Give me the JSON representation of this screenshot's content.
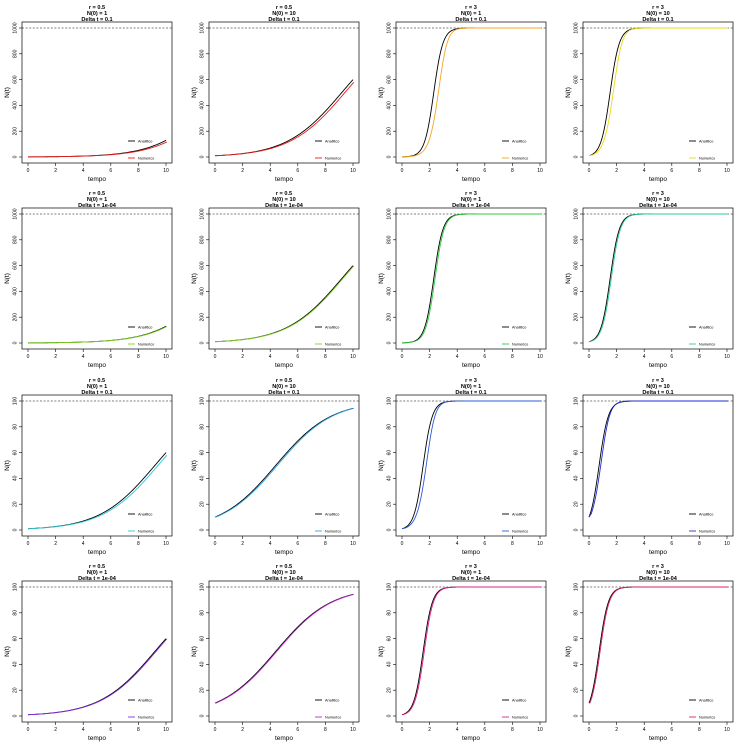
{
  "panel_common": {
    "xlabel": "tempo",
    "ylabel": "N(t)",
    "legend_analytic": "Analitico",
    "legend_numeric": "Numerico",
    "legend_position": "bottom-right",
    "xticks": [
      "0",
      "2",
      "4",
      "6",
      "8",
      "10"
    ],
    "yticks_K1000": [
      "0",
      "200",
      "400",
      "600",
      "800",
      "1000"
    ],
    "yticks_K100": [
      "0",
      "20",
      "40",
      "60",
      "80",
      "100"
    ]
  },
  "chart_data": [
    {
      "type": "line",
      "row": 0,
      "col": 0,
      "title": [
        "r = 0.5",
        "N(0) = 1",
        "Delta t = 0.1"
      ],
      "r": 0.5,
      "N0": 1,
      "K": 1000,
      "dt": 0.1,
      "xlim": [
        0,
        10
      ],
      "ylim": [
        0,
        1000
      ],
      "numeric_color": "#e8201c",
      "series": [
        {
          "name": "Analitico",
          "x": [
            0,
            2,
            4,
            6,
            8,
            10
          ],
          "y": [
            1,
            2.7,
            7.3,
            19.8,
            51.8,
            129.4
          ]
        },
        {
          "name": "Numerico"
        }
      ]
    },
    {
      "type": "line",
      "row": 0,
      "col": 1,
      "title": [
        "r = 0.5",
        "N(0) = 10",
        "Delta t = 0.1"
      ],
      "r": 0.5,
      "N0": 10,
      "K": 1000,
      "dt": 0.1,
      "xlim": [
        0,
        10
      ],
      "ylim": [
        0,
        1000
      ],
      "numeric_color": "#e8201c",
      "series": [
        {
          "name": "Analitico",
          "x": [
            0,
            2,
            4,
            6,
            8,
            10
          ],
          "y": [
            10,
            26.7,
            69.5,
            168.6,
            355.3,
            599.9
          ]
        },
        {
          "name": "Numerico"
        }
      ]
    },
    {
      "type": "line",
      "row": 0,
      "col": 2,
      "title": [
        "r = 3",
        "N(0) = 1",
        "Delta t = 0.1"
      ],
      "r": 3,
      "N0": 1,
      "K": 1000,
      "dt": 0.1,
      "xlim": [
        0,
        10
      ],
      "ylim": [
        0,
        1000
      ],
      "numeric_color": "#f5a623",
      "series": [
        {
          "name": "Analitico",
          "x": [
            0,
            1,
            2,
            3,
            4,
            6,
            10
          ],
          "y": [
            1,
            19.7,
            287.5,
            890.2,
            993.9,
            1000,
            1000
          ]
        },
        {
          "name": "Numerico"
        }
      ]
    },
    {
      "type": "line",
      "row": 0,
      "col": 3,
      "title": [
        "r = 3",
        "N(0) = 10",
        "Delta t = 0.1"
      ],
      "r": 3,
      "N0": 10,
      "K": 1000,
      "dt": 0.1,
      "xlim": [
        0,
        10
      ],
      "ylim": [
        0,
        1000
      ],
      "numeric_color": "#e6dc14",
      "series": [
        {
          "name": "Analitico",
          "x": [
            0,
            1,
            2,
            3,
            4,
            6,
            10
          ],
          "y": [
            10,
            168.6,
            802.9,
            987.9,
            999.4,
            1000,
            1000
          ]
        },
        {
          "name": "Numerico"
        }
      ]
    },
    {
      "type": "line",
      "row": 1,
      "col": 0,
      "title": [
        "r = 0.5",
        "N(0) = 1",
        "Delta t = 1e-04"
      ],
      "r": 0.5,
      "N0": 1,
      "K": 1000,
      "dt": 0.0001,
      "xlim": [
        0,
        10
      ],
      "ylim": [
        0,
        1000
      ],
      "numeric_color": "#7ed321",
      "series": [
        {
          "name": "Analitico",
          "x": [
            0,
            2,
            4,
            6,
            8,
            10
          ],
          "y": [
            1,
            2.7,
            7.3,
            19.8,
            51.8,
            129.4
          ]
        },
        {
          "name": "Numerico"
        }
      ]
    },
    {
      "type": "line",
      "row": 1,
      "col": 1,
      "title": [
        "r = 0.5",
        "N(0) = 10",
        "Delta t = 1e-04"
      ],
      "r": 0.5,
      "N0": 10,
      "K": 1000,
      "dt": 0.0001,
      "xlim": [
        0,
        10
      ],
      "ylim": [
        0,
        1000
      ],
      "numeric_color": "#7ed321",
      "series": [
        {
          "name": "Analitico",
          "x": [
            0,
            2,
            4,
            6,
            8,
            10
          ],
          "y": [
            10,
            26.7,
            69.5,
            168.6,
            355.3,
            599.9
          ]
        },
        {
          "name": "Numerico"
        }
      ]
    },
    {
      "type": "line",
      "row": 1,
      "col": 2,
      "title": [
        "r = 3",
        "N(0) = 1",
        "Delta t = 1e-04"
      ],
      "r": 3,
      "N0": 1,
      "K": 1000,
      "dt": 0.0001,
      "xlim": [
        0,
        10
      ],
      "ylim": [
        0,
        1000
      ],
      "numeric_color": "#2ecc40",
      "series": [
        {
          "name": "Analitico",
          "x": [
            0,
            1,
            2,
            3,
            4,
            6,
            10
          ],
          "y": [
            1,
            19.7,
            287.5,
            890.2,
            993.9,
            1000,
            1000
          ]
        },
        {
          "name": "Numerico"
        }
      ]
    },
    {
      "type": "line",
      "row": 1,
      "col": 3,
      "title": [
        "r = 3",
        "N(0) = 10",
        "Delta t = 1e-04"
      ],
      "r": 3,
      "N0": 10,
      "K": 1000,
      "dt": 0.0001,
      "xlim": [
        0,
        10
      ],
      "ylim": [
        0,
        1000
      ],
      "numeric_color": "#2ecc9a",
      "series": [
        {
          "name": "Analitico",
          "x": [
            0,
            1,
            2,
            3,
            4,
            6,
            10
          ],
          "y": [
            10,
            168.6,
            802.9,
            987.9,
            999.4,
            1000,
            1000
          ]
        },
        {
          "name": "Numerico"
        }
      ]
    },
    {
      "type": "line",
      "row": 2,
      "col": 0,
      "title": [
        "r = 0.5",
        "N(0) = 1",
        "Delta t = 0.1"
      ],
      "r": 0.5,
      "N0": 1,
      "K": 100,
      "dt": 0.1,
      "xlim": [
        0,
        10
      ],
      "ylim": [
        0,
        100
      ],
      "numeric_color": "#2ec4d6",
      "series": [
        {
          "name": "Analitico",
          "x": [
            0,
            2,
            4,
            6,
            8,
            10
          ],
          "y": [
            1,
            2.7,
            6.9,
            16.9,
            35.5,
            60
          ]
        },
        {
          "name": "Numerico"
        }
      ]
    },
    {
      "type": "line",
      "row": 2,
      "col": 1,
      "title": [
        "r = 0.5",
        "N(0) = 10",
        "Delta t = 0.1"
      ],
      "r": 0.5,
      "N0": 10,
      "K": 100,
      "dt": 0.1,
      "xlim": [
        0,
        10
      ],
      "ylim": [
        0,
        100
      ],
      "numeric_color": "#2ea8e8",
      "series": [
        {
          "name": "Analitico",
          "x": [
            0,
            2,
            4,
            6,
            8,
            10
          ],
          "y": [
            10,
            23.2,
            45.1,
            69.1,
            85.8,
            94.3
          ]
        },
        {
          "name": "Numerico"
        }
      ]
    },
    {
      "type": "line",
      "row": 2,
      "col": 2,
      "title": [
        "r = 3",
        "N(0) = 1",
        "Delta t = 0.1"
      ],
      "r": 3,
      "N0": 1,
      "K": 100,
      "dt": 0.1,
      "xlim": [
        0,
        10
      ],
      "ylim": [
        0,
        100
      ],
      "numeric_color": "#2a5bd7",
      "series": [
        {
          "name": "Analitico",
          "x": [
            0,
            1,
            2,
            3,
            4,
            6,
            10
          ],
          "y": [
            1,
            16.9,
            80.3,
            98.8,
            99.9,
            100,
            100
          ]
        },
        {
          "name": "Numerico"
        }
      ]
    },
    {
      "type": "line",
      "row": 2,
      "col": 3,
      "title": [
        "r = 3",
        "N(0) = 10",
        "Delta t = 0.1"
      ],
      "r": 3,
      "N0": 10,
      "K": 100,
      "dt": 0.1,
      "xlim": [
        0,
        10
      ],
      "ylim": [
        0,
        100
      ],
      "numeric_color": "#1f2bd0",
      "series": [
        {
          "name": "Analitico",
          "x": [
            0,
            1,
            2,
            3,
            4,
            6,
            10
          ],
          "y": [
            10,
            69.1,
            97.8,
            99.9,
            100,
            100,
            100
          ]
        },
        {
          "name": "Numerico"
        }
      ]
    },
    {
      "type": "line",
      "row": 3,
      "col": 0,
      "title": [
        "r = 0.5",
        "N(0) = 1",
        "Delta t = 1e-04"
      ],
      "r": 0.5,
      "N0": 1,
      "K": 100,
      "dt": 0.0001,
      "xlim": [
        0,
        10
      ],
      "ylim": [
        0,
        100
      ],
      "numeric_color": "#8a2be2",
      "series": [
        {
          "name": "Analitico",
          "x": [
            0,
            2,
            4,
            6,
            8,
            10
          ],
          "y": [
            1,
            2.7,
            6.9,
            16.9,
            35.5,
            60
          ]
        },
        {
          "name": "Numerico"
        }
      ]
    },
    {
      "type": "line",
      "row": 3,
      "col": 1,
      "title": [
        "r = 0.5",
        "N(0) = 10",
        "Delta t = 1e-04"
      ],
      "r": 0.5,
      "N0": 10,
      "K": 100,
      "dt": 0.0001,
      "xlim": [
        0,
        10
      ],
      "ylim": [
        0,
        100
      ],
      "numeric_color": "#c026d3",
      "series": [
        {
          "name": "Analitico",
          "x": [
            0,
            2,
            4,
            6,
            8,
            10
          ],
          "y": [
            10,
            23.2,
            45.1,
            69.1,
            85.8,
            94.3
          ]
        },
        {
          "name": "Numerico"
        }
      ]
    },
    {
      "type": "line",
      "row": 3,
      "col": 2,
      "title": [
        "r = 3",
        "N(0) = 1",
        "Delta t = 1e-04"
      ],
      "r": 3,
      "N0": 1,
      "K": 100,
      "dt": 0.0001,
      "xlim": [
        0,
        10
      ],
      "ylim": [
        0,
        100
      ],
      "numeric_color": "#e0218a",
      "series": [
        {
          "name": "Analitico",
          "x": [
            0,
            1,
            2,
            3,
            4,
            6,
            10
          ],
          "y": [
            1,
            16.9,
            80.3,
            98.8,
            99.9,
            100,
            100
          ]
        },
        {
          "name": "Numerico"
        }
      ]
    },
    {
      "type": "line",
      "row": 3,
      "col": 3,
      "title": [
        "r = 3",
        "N(0) = 10",
        "Delta t = 1e-04"
      ],
      "r": 3,
      "N0": 10,
      "K": 100,
      "dt": 0.0001,
      "xlim": [
        0,
        10
      ],
      "ylim": [
        0,
        100
      ],
      "numeric_color": "#e0215a",
      "series": [
        {
          "name": "Analitico",
          "x": [
            0,
            1,
            2,
            3,
            4,
            6,
            10
          ],
          "y": [
            10,
            69.1,
            97.8,
            99.9,
            100,
            100,
            100
          ]
        },
        {
          "name": "Numerico"
        }
      ]
    }
  ]
}
